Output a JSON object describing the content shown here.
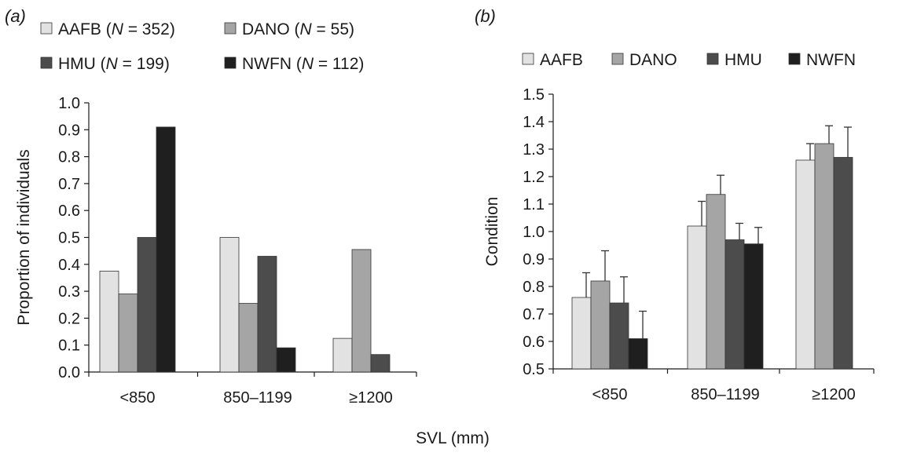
{
  "figure": {
    "xlabel": "SVL (mm)"
  },
  "chart_data": [
    {
      "type": "bar",
      "panel_label": "(a)",
      "ylabel": "Proportion of individuals",
      "ylim": [
        0.0,
        1.0
      ],
      "yticks": [
        "0.0",
        "0.1",
        "0.2",
        "0.3",
        "0.4",
        "0.5",
        "0.6",
        "0.7",
        "0.8",
        "0.9",
        "1.0"
      ],
      "categories": [
        "<850",
        "850–1199",
        "≥1200"
      ],
      "legend": [
        {
          "name": "AAFB",
          "n_prefix": "(",
          "n_label": "N",
          "n_suffix": " = 352)"
        },
        {
          "name": "DANO",
          "n_prefix": "(",
          "n_label": "N",
          "n_suffix": " = 55)"
        },
        {
          "name": "HMU",
          "n_prefix": "(",
          "n_label": "N",
          "n_suffix": " = 199)"
        },
        {
          "name": "NWFN",
          "n_prefix": "(",
          "n_label": "N",
          "n_suffix": " = 112)"
        }
      ],
      "series": [
        {
          "name": "AAFB",
          "color": "#e2e2e2",
          "values": [
            0.375,
            0.5,
            0.125
          ]
        },
        {
          "name": "DANO",
          "color": "#a5a5a5",
          "values": [
            0.29,
            0.255,
            0.455
          ]
        },
        {
          "name": "HMU",
          "color": "#4c4c4c",
          "values": [
            0.5,
            0.43,
            0.065
          ]
        },
        {
          "name": "NWFN",
          "color": "#1f1f1f",
          "values": [
            0.91,
            0.09,
            0.0
          ]
        }
      ],
      "grid": false
    },
    {
      "type": "bar",
      "panel_label": "(b)",
      "ylabel": "Condition",
      "ylim": [
        0.5,
        1.5
      ],
      "yticks": [
        "0.5",
        "0.6",
        "0.7",
        "0.8",
        "0.9",
        "1.0",
        "1.1",
        "1.2",
        "1.3",
        "1.4",
        "1.5"
      ],
      "categories": [
        "<850",
        "850–1199",
        "≥1200"
      ],
      "legend": [
        {
          "name": "AAFB"
        },
        {
          "name": "DANO"
        },
        {
          "name": "HMU"
        },
        {
          "name": "NWFN"
        }
      ],
      "series": [
        {
          "name": "AAFB",
          "color": "#e2e2e2",
          "values": [
            0.76,
            1.02,
            1.26
          ],
          "errors": [
            0.09,
            0.09,
            0.06
          ]
        },
        {
          "name": "DANO",
          "color": "#a5a5a5",
          "values": [
            0.82,
            1.135,
            1.32
          ],
          "errors": [
            0.11,
            0.07,
            0.065
          ]
        },
        {
          "name": "HMU",
          "color": "#4c4c4c",
          "values": [
            0.74,
            0.97,
            1.27
          ],
          "errors": [
            0.095,
            0.06,
            0.11
          ]
        },
        {
          "name": "NWFN",
          "color": "#1f1f1f",
          "values": [
            0.61,
            0.955,
            null
          ],
          "errors": [
            0.1,
            0.06,
            null
          ]
        }
      ],
      "grid": false
    }
  ]
}
